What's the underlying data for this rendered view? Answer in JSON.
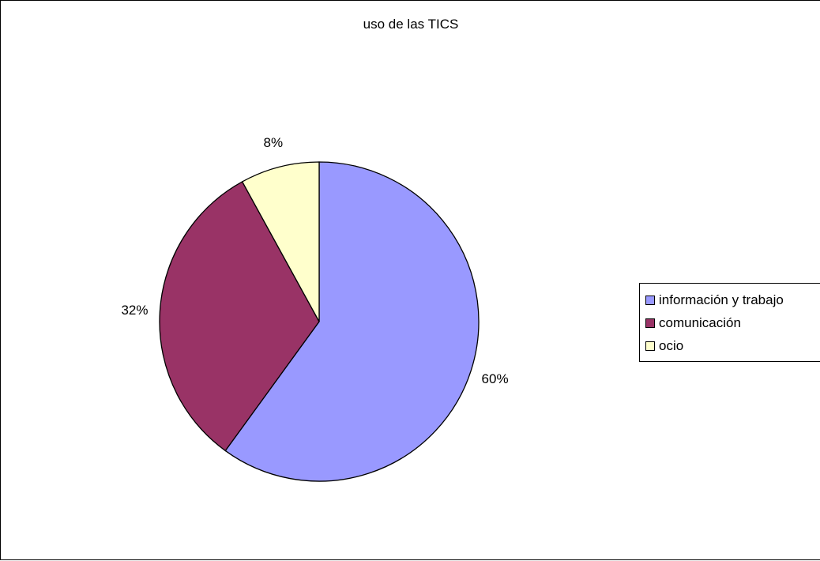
{
  "chart_data": {
    "type": "pie",
    "title": "uso de las TICS",
    "categories": [
      "información y trabajo",
      "comunicación",
      "ocio"
    ],
    "values": [
      60,
      32,
      8
    ],
    "labels": [
      "60%",
      "32%",
      "8%"
    ],
    "colors": [
      "#9999ff",
      "#993366",
      "#ffffcc"
    ],
    "legend_position": "right"
  }
}
